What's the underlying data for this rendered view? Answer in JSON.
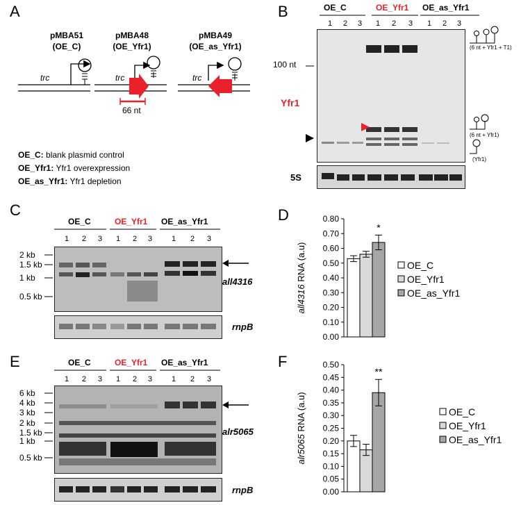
{
  "panels": {
    "A": {
      "letter": "A",
      "constructs": [
        {
          "name": "pMBA51",
          "tag": "(OE_C)"
        },
        {
          "name": "pMBA48",
          "tag": "(OE_Yfr1)"
        },
        {
          "name": "pMBA49",
          "tag": "(OE_as_Yfr1)"
        }
      ],
      "promoter": "trc",
      "scale_label": "66 nt",
      "legend": [
        {
          "key": "OE_C:",
          "text": " blank plasmid control"
        },
        {
          "key": "OE_Yfr1:",
          "text": " Yfr1 overexpression"
        },
        {
          "key": "OE_as_Yfr1:",
          "text": " Yfr1 depletion"
        }
      ]
    },
    "B": {
      "letter": "B",
      "groups": [
        "OE_C",
        "OE_Yfr1",
        "OE_as_Yfr1"
      ],
      "lanes": [
        "1",
        "2",
        "3"
      ],
      "marker": "100 nt",
      "probe": "Yfr1",
      "loading": "5S",
      "annot_top": "(6 nt + Yfr1 + T1)",
      "annot_mid": "(6 nt + Yfr1)",
      "annot_bot": "(Yfr1)"
    },
    "C": {
      "letter": "C",
      "groups": [
        "OE_C",
        "OE_Yfr1",
        "OE_as_Yfr1"
      ],
      "lanes": [
        "1",
        "2",
        "3"
      ],
      "markers": [
        "2 kb",
        "1.5 kb",
        "1 kb",
        "0.5 kb"
      ],
      "probe": "all4316",
      "loading": "rnpB"
    },
    "D": {
      "letter": "D",
      "significance": "*"
    },
    "E": {
      "letter": "E",
      "groups": [
        "OE_C",
        "OE_Yfr1",
        "OE_as_Yfr1"
      ],
      "lanes": [
        "1",
        "2",
        "3"
      ],
      "markers": [
        "6 kb",
        "4 kb",
        "3 kb",
        "2 kb",
        "1.5 kb",
        "1 kb",
        "0.5 kb"
      ],
      "probe": "alr5065",
      "loading": "rnpB"
    },
    "F": {
      "letter": "F",
      "significance": "**"
    }
  },
  "chart_data": [
    {
      "type": "bar",
      "panel": "D",
      "categories": [
        "OE_C",
        "OE_Yfr1",
        "OE_as_Yfr1"
      ],
      "values": [
        0.53,
        0.56,
        0.64
      ],
      "errors": [
        0.02,
        0.02,
        0.05
      ],
      "colors": [
        "#ffffff",
        "#d9d9d9",
        "#a6a6a6"
      ],
      "ylabel_italic": "all4316",
      "ylabel_rest": " RNA (a.u)",
      "ylim": [
        0.0,
        0.8
      ],
      "yticks": [
        "0.00",
        "0.10",
        "0.20",
        "0.30",
        "0.40",
        "0.50",
        "0.60",
        "0.70",
        "0.80"
      ],
      "legend": [
        "OE_C",
        "OE_Yfr1",
        "OE_as_Yfr1"
      ],
      "legend_position": "right"
    },
    {
      "type": "bar",
      "panel": "F",
      "categories": [
        "OE_C",
        "OE_Yfr1",
        "OE_as_Yfr1"
      ],
      "values": [
        0.2,
        0.165,
        0.39
      ],
      "errors": [
        0.022,
        0.022,
        0.052
      ],
      "colors": [
        "#ffffff",
        "#d9d9d9",
        "#a6a6a6"
      ],
      "ylabel_italic": "alr5065",
      "ylabel_rest": " RNA (a.u)",
      "ylim": [
        0.0,
        0.5
      ],
      "yticks": [
        "0.00",
        "0.05",
        "0.10",
        "0.15",
        "0.20",
        "0.25",
        "0.30",
        "0.35",
        "0.40",
        "0.45",
        "0.50"
      ],
      "legend": [
        "OE_C",
        "OE_Yfr1",
        "OE_as_Yfr1"
      ],
      "legend_position": "right"
    }
  ]
}
